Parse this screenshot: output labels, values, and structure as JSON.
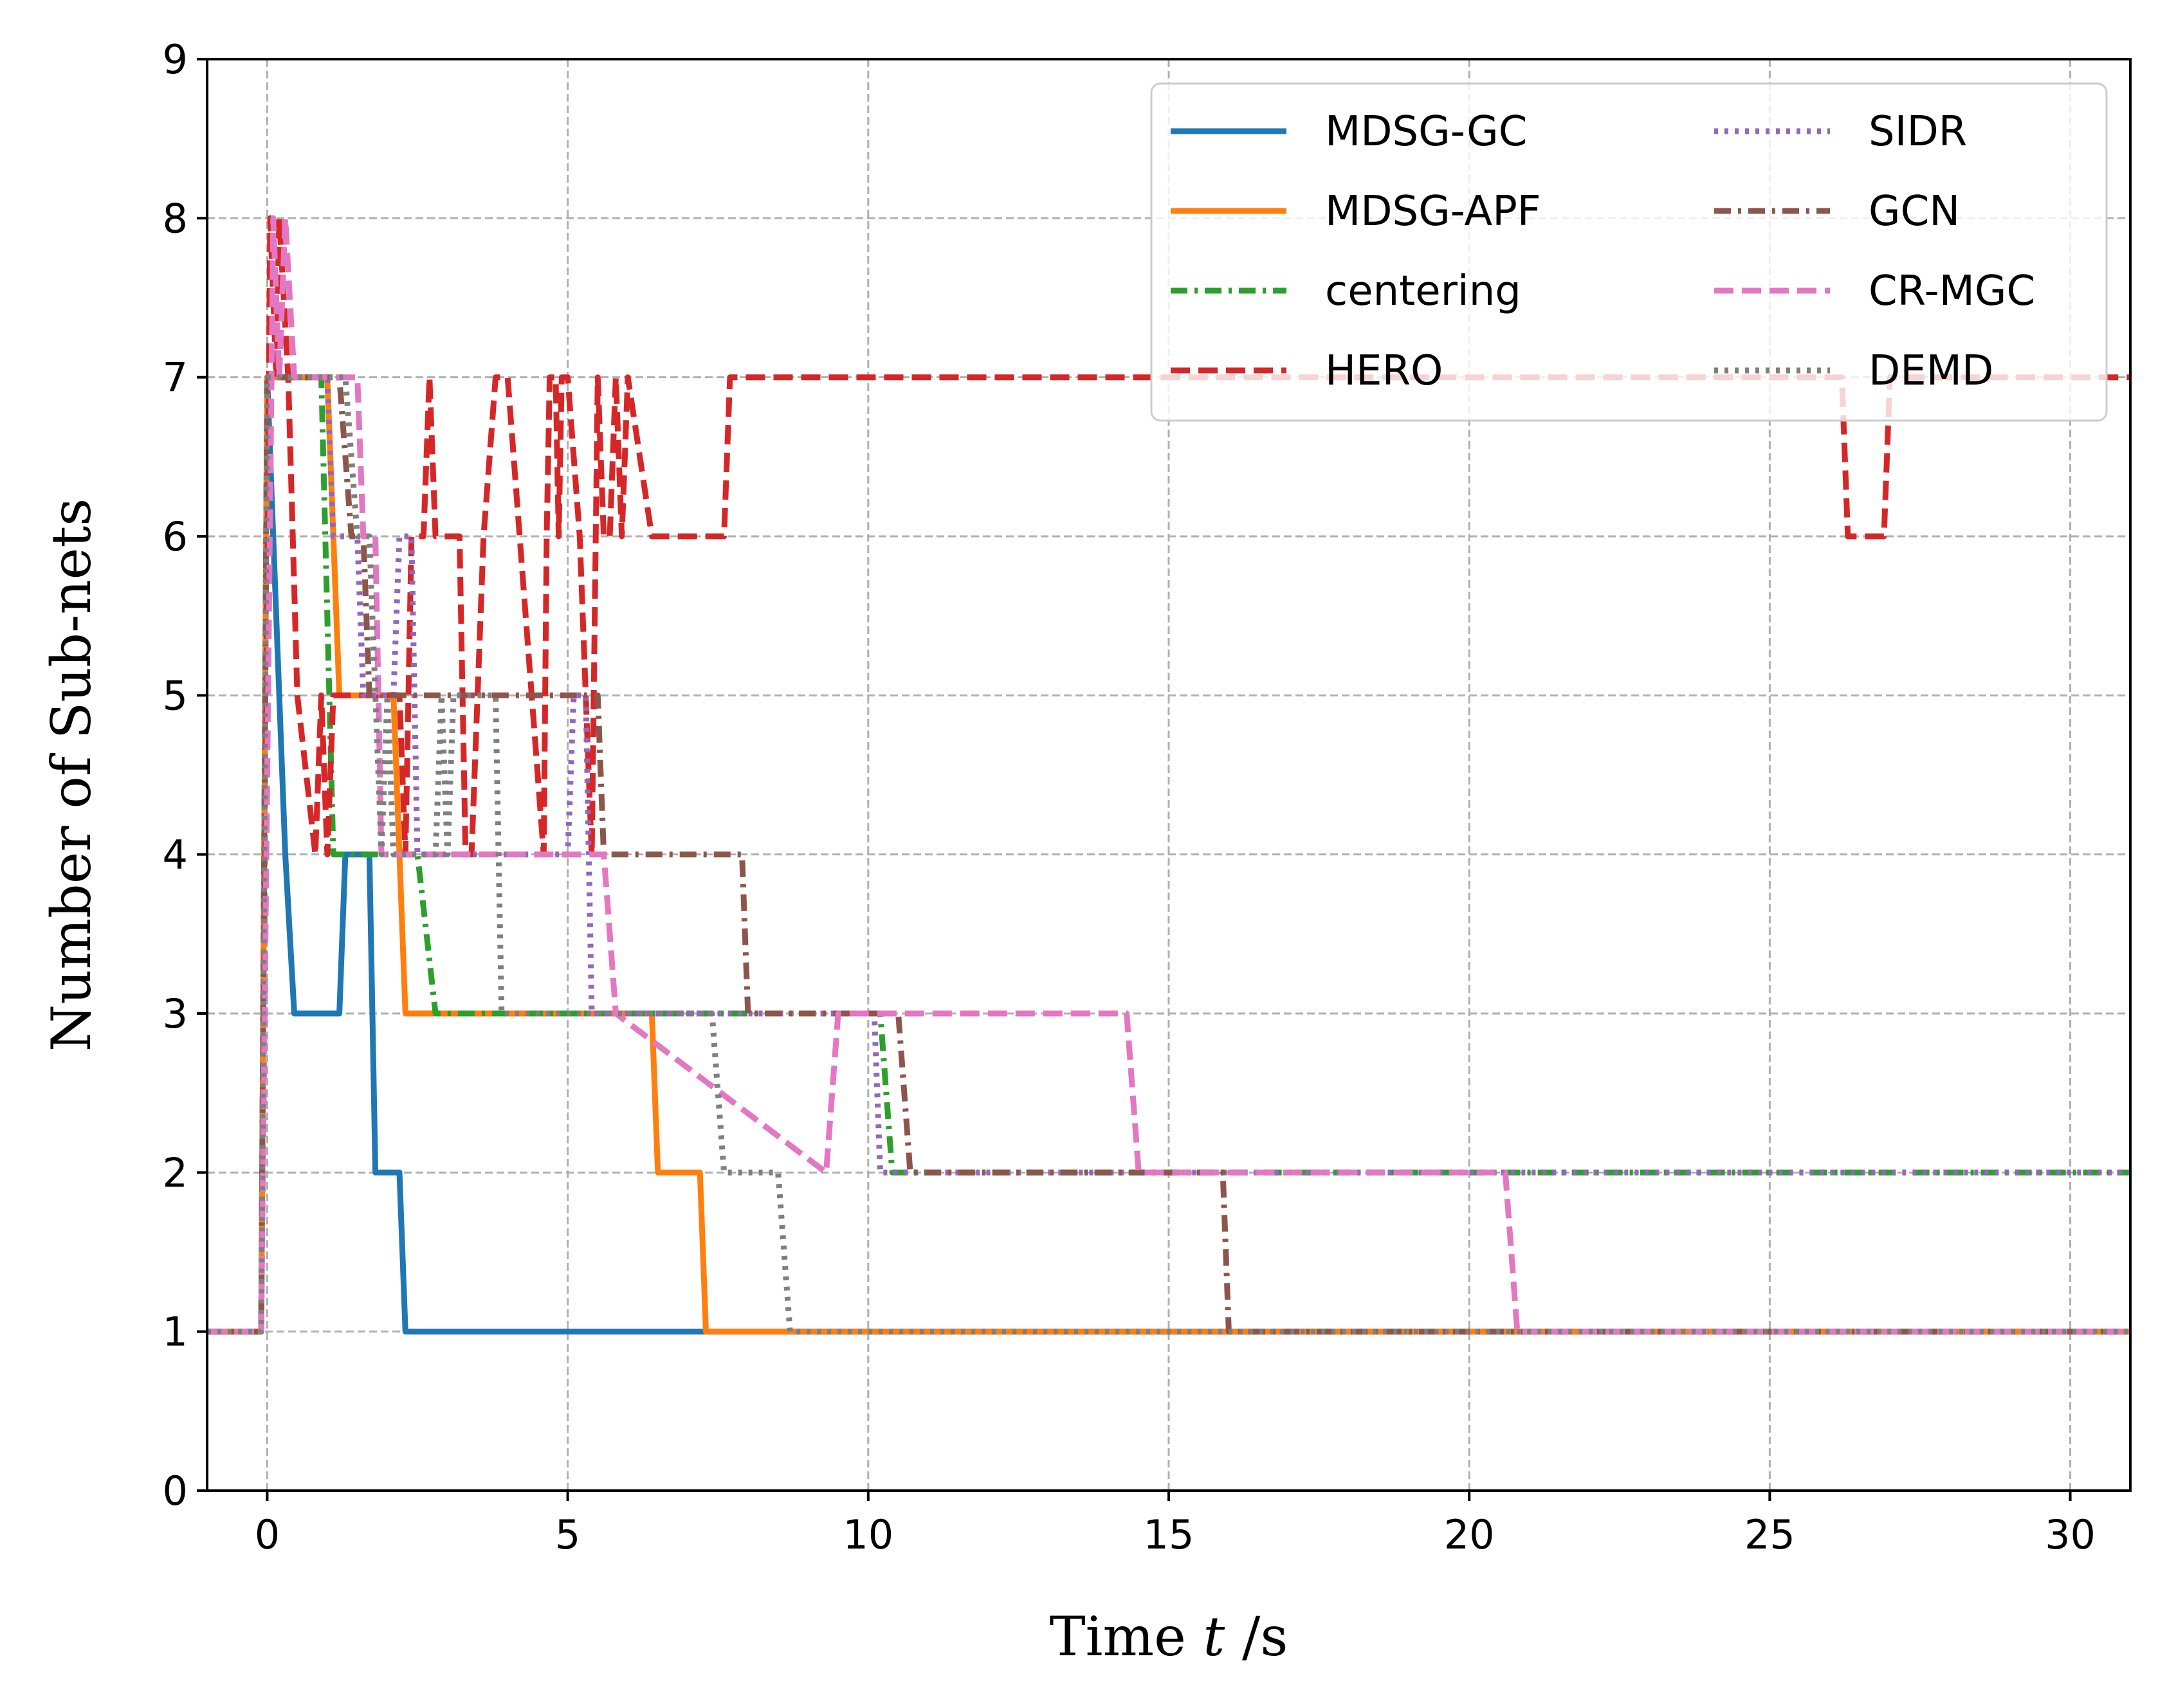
{
  "chart_data": {
    "type": "line",
    "title": "",
    "xlabel": "Time t /s",
    "xlabel_parts": {
      "prefix": "Time ",
      "var": "t",
      "suffix": " /s"
    },
    "ylabel": "Number of Sub-nets",
    "xlim": [
      -1,
      31
    ],
    "ylim": [
      0,
      9
    ],
    "xticks": [
      0,
      5,
      10,
      15,
      20,
      25,
      30
    ],
    "yticks": [
      0,
      1,
      2,
      3,
      4,
      5,
      6,
      7,
      8,
      9
    ],
    "grid": true,
    "legend_placement": "top-right",
    "legend_columns": 2,
    "series": [
      {
        "name": "MDSG-GC",
        "color": "#1f77b4",
        "style": "solid",
        "x": [
          -1,
          -0.1,
          0,
          0.3,
          0.45,
          1.2,
          1.3,
          1.7,
          1.8,
          2.2,
          2.3,
          31
        ],
        "y": [
          1,
          1,
          7,
          4,
          3,
          3,
          4,
          4,
          2,
          2,
          1,
          1
        ]
      },
      {
        "name": "MDSG-APF",
        "color": "#ff7f0e",
        "style": "solid",
        "x": [
          -1,
          -0.1,
          0,
          1,
          1.2,
          2.1,
          2.3,
          6.4,
          6.5,
          7.2,
          7.3,
          31
        ],
        "y": [
          1,
          1,
          7,
          7,
          5,
          5,
          3,
          3,
          2,
          2,
          1,
          1
        ]
      },
      {
        "name": "centering",
        "color": "#2ca02c",
        "style": "dashdot",
        "x": [
          -1,
          -0.1,
          0,
          0.9,
          1.1,
          2.5,
          2.8,
          10.2,
          10.4,
          31
        ],
        "y": [
          1,
          1,
          7,
          7,
          4,
          4,
          3,
          3,
          2,
          2
        ]
      },
      {
        "name": "HERO",
        "color": "#d62728",
        "style": "dashed",
        "x": [
          -1,
          -0.1,
          0.05,
          0.15,
          0.2,
          0.35,
          0.5,
          0.8,
          0.9,
          1.0,
          1.1,
          2.2,
          2.3,
          2.4,
          2.5,
          2.6,
          2.7,
          2.8,
          3.2,
          3.3,
          3.4,
          3.6,
          3.8,
          4.0,
          4.2,
          4.6,
          4.65,
          4.7,
          4.8,
          4.85,
          4.9,
          5.0,
          5.2,
          5.4,
          5.5,
          5.6,
          5.7,
          5.8,
          5.9,
          6.0,
          6.4,
          6.5,
          7.6,
          7.7,
          26.2,
          26.3,
          26.9,
          27.0,
          31
        ],
        "y": [
          1,
          1,
          8,
          7,
          8,
          7,
          5,
          4,
          5,
          4,
          5,
          5,
          4,
          6,
          6,
          6,
          7,
          6,
          6,
          4,
          4,
          6,
          7,
          7,
          6,
          4,
          6,
          7,
          7,
          6,
          7,
          7,
          6,
          4,
          7,
          6,
          6,
          7,
          6,
          7,
          6,
          6,
          6,
          7,
          7,
          6,
          6,
          7,
          7
        ]
      },
      {
        "name": "SIDR",
        "color": "#9467bd",
        "style": "dotted",
        "x": [
          -1,
          -0.1,
          0,
          1.0,
          1.1,
          1.5,
          1.6,
          2.1,
          2.2,
          2.4,
          2.5,
          5.0,
          5.1,
          5.3,
          5.4,
          10.1,
          10.2,
          31
        ],
        "y": [
          1,
          1,
          7,
          7,
          6,
          6,
          5,
          5,
          6,
          6,
          4,
          4,
          5,
          5,
          3,
          3,
          2,
          2
        ]
      },
      {
        "name": "GCN",
        "color": "#8c564b",
        "style": "dashdot",
        "x": [
          -1,
          -0.1,
          0,
          1.2,
          1.4,
          1.6,
          1.7,
          2.1,
          2.2,
          5.5,
          5.6,
          7.9,
          8.0,
          10.5,
          10.7,
          15.9,
          16.0,
          31
        ],
        "y": [
          1,
          1,
          7,
          7,
          6,
          6,
          5,
          5,
          5,
          5,
          4,
          4,
          3,
          3,
          2,
          2,
          1,
          1
        ]
      },
      {
        "name": "CR-MGC",
        "color": "#e377c2",
        "style": "dashed",
        "x": [
          -1,
          -0.1,
          0.1,
          0.2,
          0.3,
          0.45,
          1.5,
          1.6,
          1.8,
          1.9,
          5.6,
          5.8,
          9.3,
          9.5,
          14.3,
          14.5,
          20.6,
          20.8,
          31
        ],
        "y": [
          1,
          1,
          8,
          7,
          8,
          7,
          7,
          6,
          6,
          4,
          4,
          3,
          2,
          3,
          3,
          2,
          2,
          1,
          1
        ]
      },
      {
        "name": "DEMD",
        "color": "#7f7f7f",
        "style": "dotted",
        "x": [
          -1,
          -0.1,
          0,
          1.3,
          1.5,
          1.7,
          1.9,
          2.0,
          2.1,
          2.8,
          2.9,
          3.0,
          3.1,
          3.8,
          3.9,
          7.4,
          7.6,
          8.5,
          8.7,
          31
        ],
        "y": [
          1,
          1,
          7,
          7,
          6,
          6,
          4,
          5,
          4,
          4,
          5,
          4,
          5,
          5,
          3,
          3,
          2,
          2,
          1,
          1
        ]
      }
    ]
  }
}
